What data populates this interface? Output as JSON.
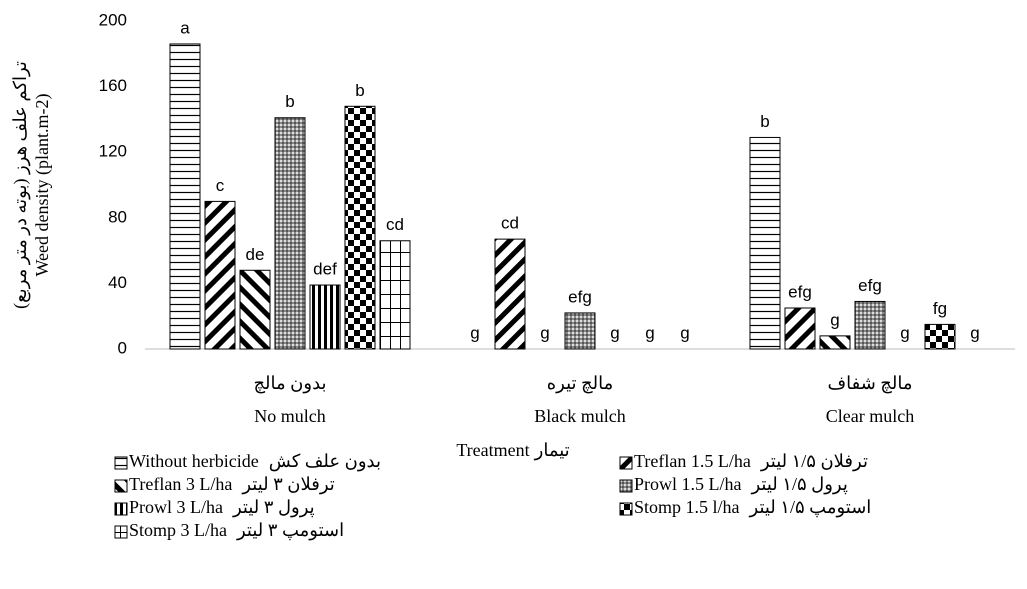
{
  "chart_data": {
    "type": "bar",
    "categories": [
      "No mulch",
      "Black mulch",
      "Clear mulch"
    ],
    "categories_fa": [
      "بدون مالچ",
      "مالچ تیره",
      "مالچ شفاف"
    ],
    "ylabel": "Weed density (plant.m-2)",
    "ylabel_fa": "تراکم علف هرز (بوته در متر مربع)",
    "xlabel": "Treatment",
    "xlabel_fa": "تیمار",
    "ylim": [
      0,
      200
    ],
    "yticks": [
      0,
      40,
      80,
      120,
      160,
      200
    ],
    "series": [
      {
        "name": "Without herbicide",
        "name_fa": "بدون علف کش",
        "pattern": "hlines",
        "values": [
          186,
          0,
          129
        ],
        "letters": [
          "a",
          "g",
          "b"
        ]
      },
      {
        "name": "Treflan 1.5 L/ha",
        "name_fa": "ترفلان ۱/۵ لیتر",
        "pattern": "backslash",
        "values": [
          90,
          67,
          25
        ],
        "letters": [
          "c",
          "cd",
          "efg"
        ]
      },
      {
        "name": "Treflan 3 L/ha",
        "name_fa": "ترفلان ۳ لیتر",
        "pattern": "slash",
        "values": [
          48,
          0,
          8
        ],
        "letters": [
          "de",
          "g",
          "g"
        ]
      },
      {
        "name": "Prowl 1.5 L/ha",
        "name_fa": "پرول ۱/۵ لیتر",
        "pattern": "dots",
        "values": [
          141,
          22,
          29
        ],
        "letters": [
          "b",
          "efg",
          "efg"
        ]
      },
      {
        "name": "Prowl 3 L/ha",
        "name_fa": "پرول ۳ لیتر",
        "pattern": "vlines",
        "values": [
          39,
          0,
          0
        ],
        "letters": [
          "def",
          "g",
          "g"
        ]
      },
      {
        "name": "Stomp 1.5 l/ha",
        "name_fa": "استومپ ۱/۵ لیتر",
        "pattern": "checker",
        "values": [
          148,
          0,
          15
        ],
        "letters": [
          "b",
          "g",
          "fg"
        ]
      },
      {
        "name": "Stomp 3 L/ha",
        "name_fa": "استومپ ۳ لیتر",
        "pattern": "grid",
        "values": [
          66,
          0,
          0
        ],
        "letters": [
          "cd",
          "g",
          "g"
        ]
      }
    ]
  }
}
